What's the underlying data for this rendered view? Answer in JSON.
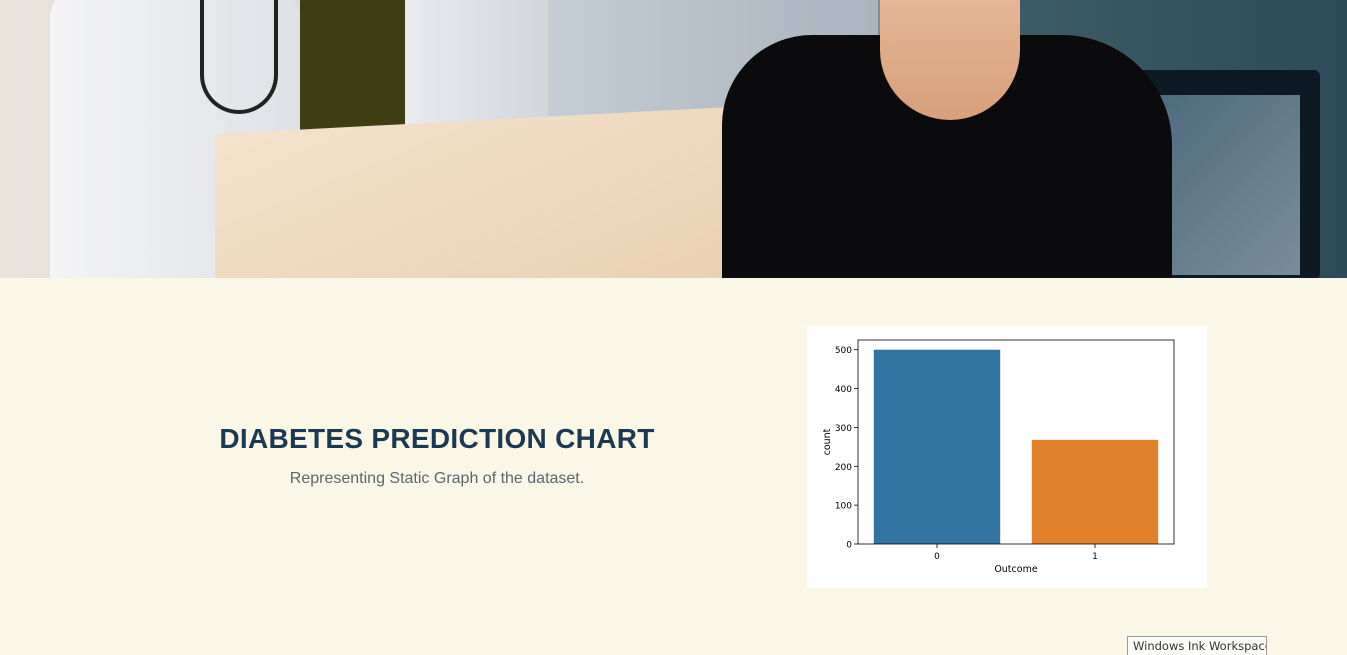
{
  "hero": {
    "image_description_icon": "doctor-patient-photo-icon"
  },
  "section": {
    "title": "DIABETES PREDICTION CHART",
    "subtitle": "Representing Static Graph of the dataset."
  },
  "chart_data": {
    "type": "bar",
    "categories": [
      "0",
      "1"
    ],
    "values": [
      500,
      268
    ],
    "xlabel": "Outcome",
    "ylabel": "count",
    "ylim": [
      0,
      525
    ],
    "yticks": [
      0,
      100,
      200,
      300,
      400,
      500
    ],
    "colors": [
      "#3274a1",
      "#e1812c"
    ],
    "grid": false
  },
  "taskbar": {
    "ink_label": "Windows Ink Workspace"
  }
}
